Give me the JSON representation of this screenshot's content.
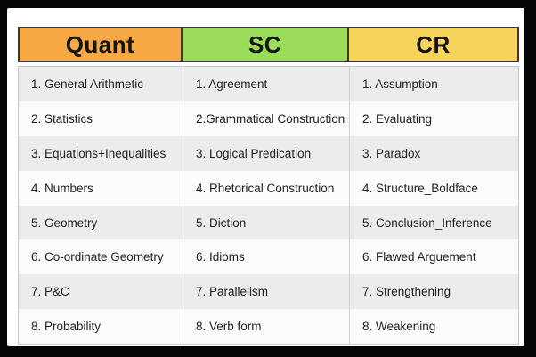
{
  "colors": {
    "frame": "#060606",
    "panel_background": "#ffffff",
    "header_border": "#3c382a",
    "body_border": "#c8c8c8",
    "row_odd": "#ececec",
    "row_even": "#fbfbfb",
    "text": "#202020",
    "header_fills": [
      "#f5a843",
      "#9adb5a",
      "#f6d45c"
    ]
  },
  "chart_data": {
    "type": "table",
    "title": "",
    "columns": [
      "Quant",
      "SC",
      "CR"
    ],
    "rows": [
      [
        "1. General Arithmetic",
        "1. Agreement",
        "1. Assumption"
      ],
      [
        "2. Statistics",
        "2.Grammatical Construction",
        "2. Evaluating"
      ],
      [
        "3. Equations+Inequalities",
        "3. Logical Predication",
        "3. Paradox"
      ],
      [
        "4. Numbers",
        "4. Rhetorical Construction",
        "4. Structure_Boldface"
      ],
      [
        "5. Geometry",
        "5. Diction",
        "5. Conclusion_Inference"
      ],
      [
        "6. Co-ordinate Geometry",
        "6. Idioms",
        "6. Flawed Arguement"
      ],
      [
        "7. P&C",
        "7. Parallelism",
        "7. Strengthening"
      ],
      [
        "8. Probability",
        "8. Verb form",
        "8. Weakening"
      ]
    ],
    "layout": {
      "grid": false,
      "header_colors": [
        "orange",
        "green",
        "yellow"
      ],
      "row_striping": "odd rows light gray, even rows white"
    }
  }
}
